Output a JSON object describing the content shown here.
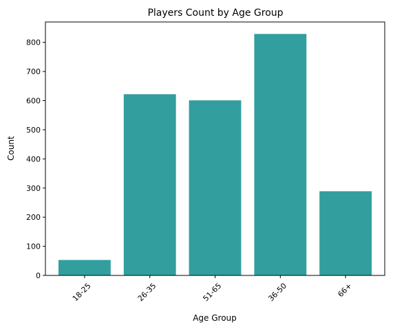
{
  "chart_data": {
    "type": "bar",
    "title": "Players Count by Age Group",
    "xlabel": "Age Group",
    "ylabel": "Count",
    "categories": [
      "18-25",
      "26-35",
      "51-65",
      "36-50",
      "66+"
    ],
    "values": [
      53,
      622,
      601,
      829,
      289
    ],
    "ylim": [
      0,
      870
    ],
    "yticks": [
      0,
      100,
      200,
      300,
      400,
      500,
      600,
      700,
      800
    ],
    "bar_color": "#339e9e",
    "grid": false,
    "x_tick_rotation_deg": 45
  }
}
